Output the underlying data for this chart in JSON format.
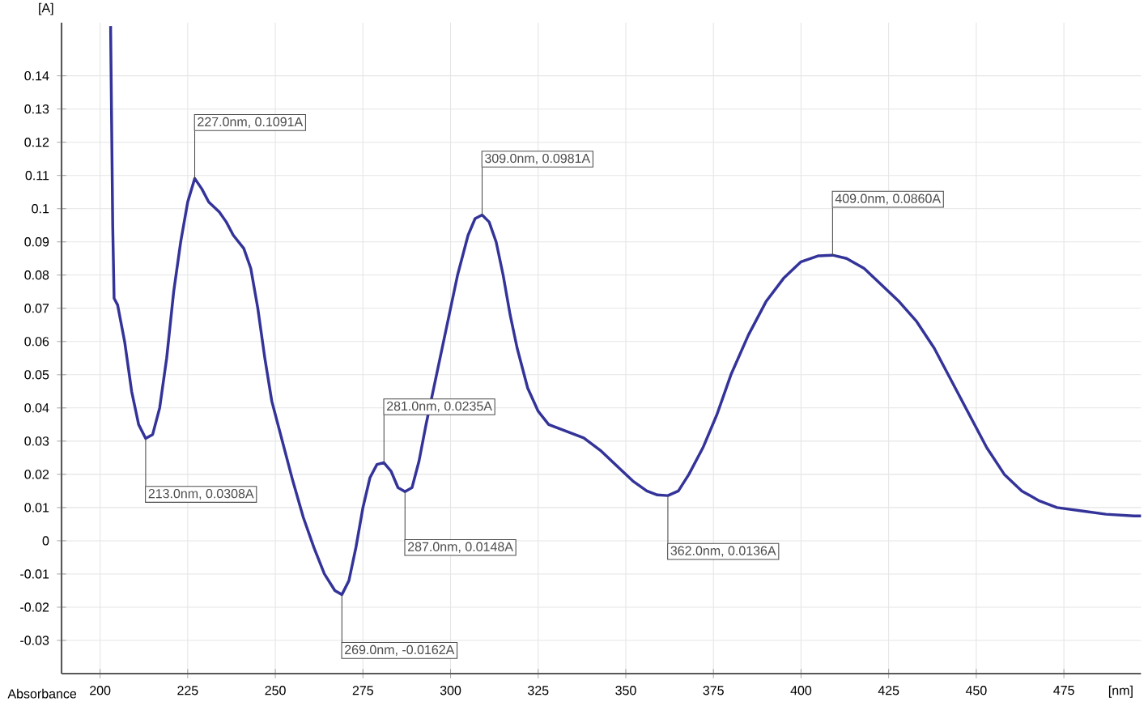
{
  "chart_data": {
    "type": "line",
    "xlabel": "[nm]",
    "ylabel": "[A]",
    "x": [
      203,
      203.3,
      203.6,
      204,
      205,
      207,
      209,
      211,
      213,
      215,
      217,
      219,
      221,
      223,
      225,
      227,
      229,
      231,
      234,
      236,
      238,
      241,
      243,
      245,
      247,
      249,
      252,
      255,
      258,
      261,
      264,
      267,
      269,
      271,
      273,
      275,
      277,
      279,
      281,
      283,
      285,
      287,
      289,
      291,
      293,
      296,
      299,
      302,
      305,
      307,
      309,
      311,
      313,
      315,
      317,
      319,
      322,
      325,
      328,
      333,
      338,
      343,
      348,
      352,
      356,
      359,
      362,
      365,
      368,
      372,
      376,
      380,
      385,
      390,
      395,
      400,
      405,
      409,
      413,
      418,
      423,
      428,
      433,
      438,
      443,
      448,
      453,
      458,
      463,
      468,
      473,
      480,
      487,
      495,
      497
    ],
    "series": [
      {
        "color": "#333399",
        "values": [
          0.155,
          0.125,
          0.095,
          0.073,
          0.071,
          0.06,
          0.045,
          0.035,
          0.0308,
          0.032,
          0.04,
          0.055,
          0.075,
          0.09,
          0.102,
          0.1091,
          0.106,
          0.102,
          0.099,
          0.096,
          0.092,
          0.088,
          0.082,
          0.07,
          0.055,
          0.042,
          0.03,
          0.018,
          0.007,
          -0.002,
          -0.01,
          -0.015,
          -0.0162,
          -0.012,
          -0.002,
          0.01,
          0.019,
          0.023,
          0.0235,
          0.021,
          0.016,
          0.0148,
          0.016,
          0.024,
          0.035,
          0.05,
          0.065,
          0.08,
          0.092,
          0.097,
          0.0981,
          0.096,
          0.09,
          0.08,
          0.068,
          0.058,
          0.046,
          0.039,
          0.035,
          0.033,
          0.031,
          0.027,
          0.022,
          0.018,
          0.015,
          0.0138,
          0.0136,
          0.015,
          0.02,
          0.028,
          0.038,
          0.05,
          0.062,
          0.072,
          0.079,
          0.084,
          0.0858,
          0.086,
          0.085,
          0.082,
          0.077,
          0.072,
          0.066,
          0.058,
          0.048,
          0.038,
          0.028,
          0.02,
          0.015,
          0.012,
          0.01,
          0.009,
          0.008,
          0.0075,
          0.0075
        ]
      }
    ],
    "xlim": [
      189,
      497
    ],
    "ylim": [
      -0.04,
      0.156
    ],
    "xticks": [
      200,
      225,
      250,
      275,
      300,
      325,
      350,
      375,
      400,
      425,
      450,
      475
    ],
    "yticks": [
      -0.03,
      -0.02,
      -0.01,
      0,
      0.01,
      0.02,
      0.03,
      0.04,
      0.05,
      0.06,
      0.07,
      0.08,
      0.09,
      0.1,
      0.11,
      0.12,
      0.13,
      0.14
    ],
    "grid": true,
    "annotations": [
      "Absorbance",
      {
        "text": "227.0nm, 0.1091A",
        "x": 227,
        "y": 0.1091
      },
      {
        "text": "309.0nm, 0.0981A",
        "x": 309,
        "y": 0.0981
      },
      {
        "text": "409.0nm, 0.0860A",
        "x": 409,
        "y": 0.086
      },
      {
        "text": "281.0nm, 0.0235A",
        "x": 281,
        "y": 0.0235
      },
      {
        "text": "213.0nm, 0.0308A",
        "x": 213,
        "y": 0.0308
      },
      {
        "text": "269.0nm, -0.0162A",
        "x": 269,
        "y": -0.0162
      },
      {
        "text": "287.0nm, 0.0148A",
        "x": 287,
        "y": 0.0148
      },
      {
        "text": "362.0nm, 0.0136A",
        "x": 362,
        "y": 0.0136
      }
    ]
  }
}
